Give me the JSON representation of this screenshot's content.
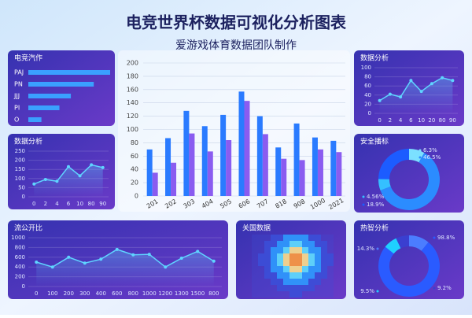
{
  "header": {
    "title": "电竞世界杯数据可视化分析图表",
    "subtitle": "爱游戏体育数据团队制作"
  },
  "chart_data": [
    {
      "type": "hbar",
      "title": "电竞汽作",
      "categories": [
        "PAJ",
        "PN",
        "JJJ",
        "PI",
        "O"
      ],
      "values": [
        100,
        80,
        52,
        38,
        16
      ],
      "color": "#3aa0ff"
    },
    {
      "type": "line",
      "title": "数据分析",
      "categories": [
        "0",
        "2",
        "4",
        "6",
        "10",
        "80",
        "90"
      ],
      "values": [
        70,
        95,
        85,
        165,
        115,
        175,
        160
      ],
      "color": "#5fd4ff",
      "ylim": [
        0,
        250
      ],
      "yticks": [
        0,
        50,
        100,
        150,
        200,
        250
      ],
      "grid": true
    },
    {
      "type": "line",
      "title": "流公开比",
      "categories": [
        "0",
        "100",
        "200",
        "300",
        "400",
        "600",
        "800",
        "1000",
        "1200",
        "1300",
        "1500",
        "800"
      ],
      "values": [
        500,
        400,
        600,
        480,
        560,
        760,
        650,
        660,
        400,
        580,
        720,
        520
      ],
      "color": "#5fd4ff",
      "ylim": [
        0,
        1000
      ],
      "yticks": [
        0,
        200,
        400,
        600,
        800,
        1000
      ],
      "grid": true
    },
    {
      "type": "bar",
      "categories": [
        "201",
        "202",
        "303",
        "404",
        "505",
        "606",
        "707",
        "818",
        "908",
        "1000",
        "2021"
      ],
      "series": [
        {
          "color": "#2a7bff",
          "values": [
            70,
            87,
            128,
            105,
            122,
            157,
            120,
            73,
            109,
            88,
            83
          ]
        },
        {
          "color": "#8a5cf0",
          "values": [
            35,
            50,
            94,
            67,
            84,
            143,
            93,
            56,
            54,
            70,
            66
          ]
        }
      ],
      "ylim": [
        0,
        200
      ],
      "yticks": [
        0,
        20,
        40,
        60,
        80,
        100,
        120,
        140,
        160,
        180,
        200
      ],
      "grid": true
    },
    {
      "type": "line",
      "title": "数据分析",
      "categories": [
        "0",
        "2",
        "4",
        "6",
        "10",
        "20",
        "80",
        "90"
      ],
      "values": [
        28,
        42,
        36,
        72,
        48,
        65,
        78,
        72
      ],
      "color": "#5fd4ff",
      "ylim": [
        0,
        100
      ],
      "yticks": [
        0,
        20,
        40,
        60,
        80,
        100
      ],
      "grid": true
    },
    {
      "type": "donut",
      "title": "安全播标",
      "values": [
        6.3,
        46.5,
        4.56,
        18.9
      ],
      "value_labels": [
        "6.3%",
        "46.5%",
        "4.56%",
        "18.9%"
      ],
      "colors": [
        "#7be0ff",
        "#2b8cff",
        "#35c0ff",
        "#1c5cff"
      ]
    },
    {
      "type": "heatmap",
      "title": "关国数据"
    },
    {
      "type": "donut",
      "title": "热智分析",
      "values": [
        14.3,
        98.8,
        9.5,
        9.2
      ],
      "value_labels": [
        "14.3%",
        "98.8%",
        "9.5%",
        "9.2%"
      ],
      "colors": [
        "#4b7dff",
        "#2a5bff",
        "#1fd0ff",
        "#3a3fd0"
      ]
    }
  ]
}
